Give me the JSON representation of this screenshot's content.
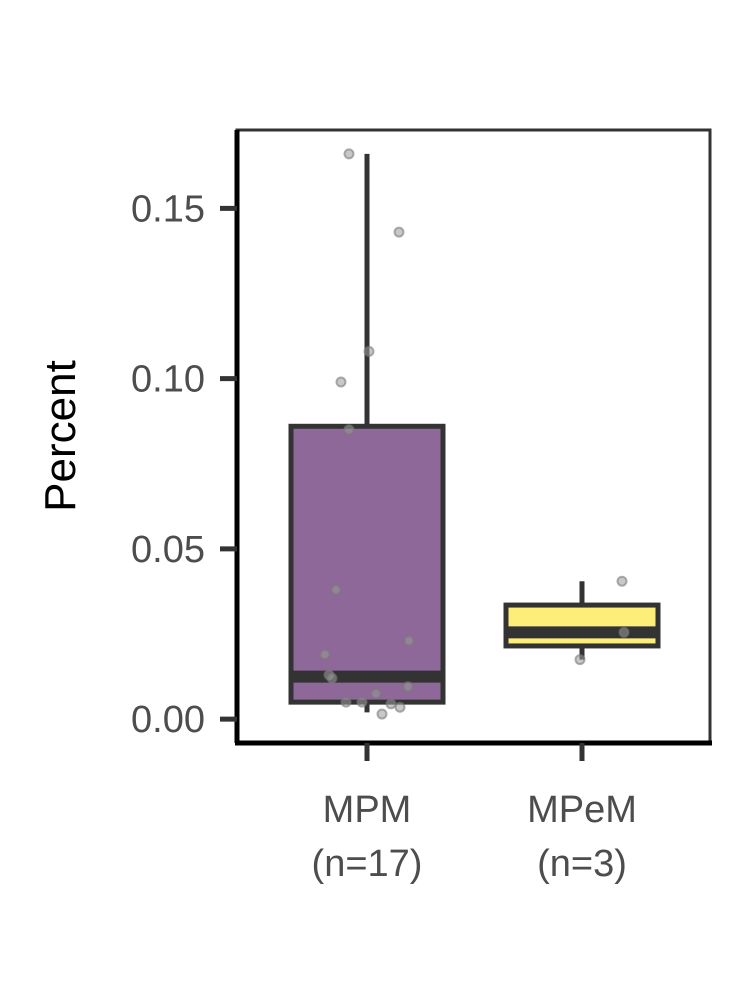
{
  "chart_data": {
    "type": "boxplot",
    "title": "",
    "xlabel": "",
    "ylabel": "Percent",
    "ylim": [
      -0.007,
      0.173
    ],
    "yticks": [
      0.0,
      0.05,
      0.1,
      0.15
    ],
    "ytick_labels": [
      "0.00",
      "0.05",
      "0.10",
      "0.15"
    ],
    "grid": false,
    "legend": "none",
    "groups": [
      {
        "label_line1": "MPM",
        "label_line2": "(n=17)",
        "color": "#8e6898",
        "box": {
          "q1": 0.005,
          "median": 0.0125,
          "q3": 0.086,
          "whisker_low": 0.002,
          "whisker_high": 0.166
        },
        "points": [
          0.166,
          0.143,
          0.108,
          0.099,
          0.085,
          0.038,
          0.023,
          0.019,
          0.013,
          0.012,
          0.0095,
          0.0075,
          0.005,
          0.005,
          0.0045,
          0.0035,
          0.0015
        ]
      },
      {
        "label_line1": "MPeM",
        "label_line2": "(n=3)",
        "color": "#fdee7a",
        "box": {
          "q1": 0.0215,
          "median": 0.0255,
          "q3": 0.0335,
          "whisker_low": 0.0175,
          "whisker_high": 0.0405
        },
        "points": [
          0.0405,
          0.0255,
          0.0175
        ]
      }
    ],
    "colors": {
      "box_outline": "#333333",
      "point": "#7a7a7a",
      "axis": "#000000"
    }
  }
}
